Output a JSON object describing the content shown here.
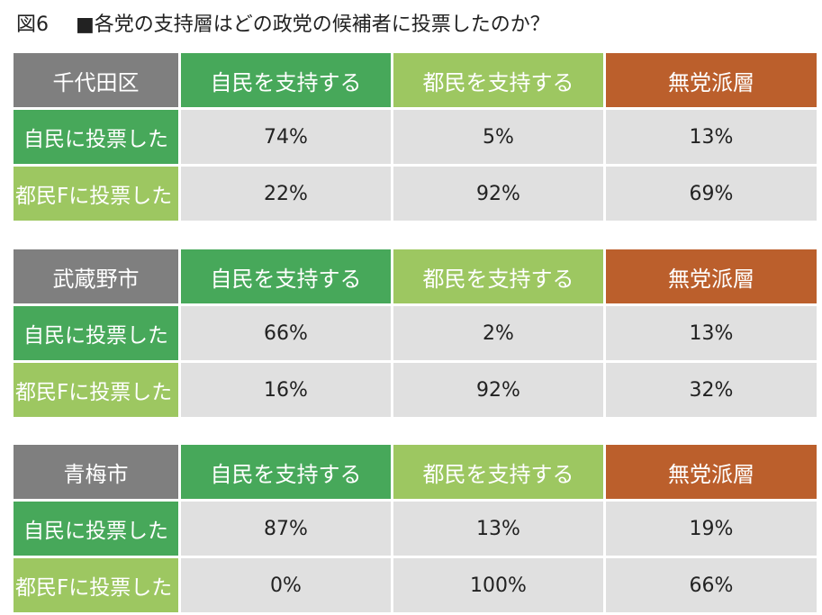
{
  "title": {
    "figure_label": "図6",
    "text": "■各党の支持層はどの政党の候補者に投票したのか？"
  },
  "chart_data": {
    "type": "table",
    "title": "■各党の支持層はどの政党の候補者に投票したのか？",
    "columns": [
      "自民を支持する",
      "都民を支持する",
      "無党派層"
    ],
    "row_labels": [
      "自民に投票した",
      "都民Fに投票した"
    ],
    "tables": [
      {
        "region": "千代田区",
        "rows": [
          {
            "label": "自民に投票した",
            "values": [
              "74%",
              "5%",
              "13%"
            ]
          },
          {
            "label": "都民Fに投票した",
            "values": [
              "22%",
              "92%",
              "69%"
            ]
          }
        ]
      },
      {
        "region": "武蔵野市",
        "rows": [
          {
            "label": "自民に投票した",
            "values": [
              "66%",
              "2%",
              "13%"
            ]
          },
          {
            "label": "都民Fに投票した",
            "values": [
              "16%",
              "92%",
              "32%"
            ]
          }
        ]
      },
      {
        "region": "青梅市",
        "rows": [
          {
            "label": "自民に投票した",
            "values": [
              "87%",
              "13%",
              "19%"
            ]
          },
          {
            "label": "都民Fに投票した",
            "values": [
              "0%",
              "100%",
              "66%"
            ]
          }
        ]
      }
    ]
  },
  "colors": {
    "region_header": "#7f7f7f",
    "ldp": "#47a85a",
    "tomin": "#9dc761",
    "independent": "#bb5f2c",
    "value_cell": "#e0e0e0"
  }
}
